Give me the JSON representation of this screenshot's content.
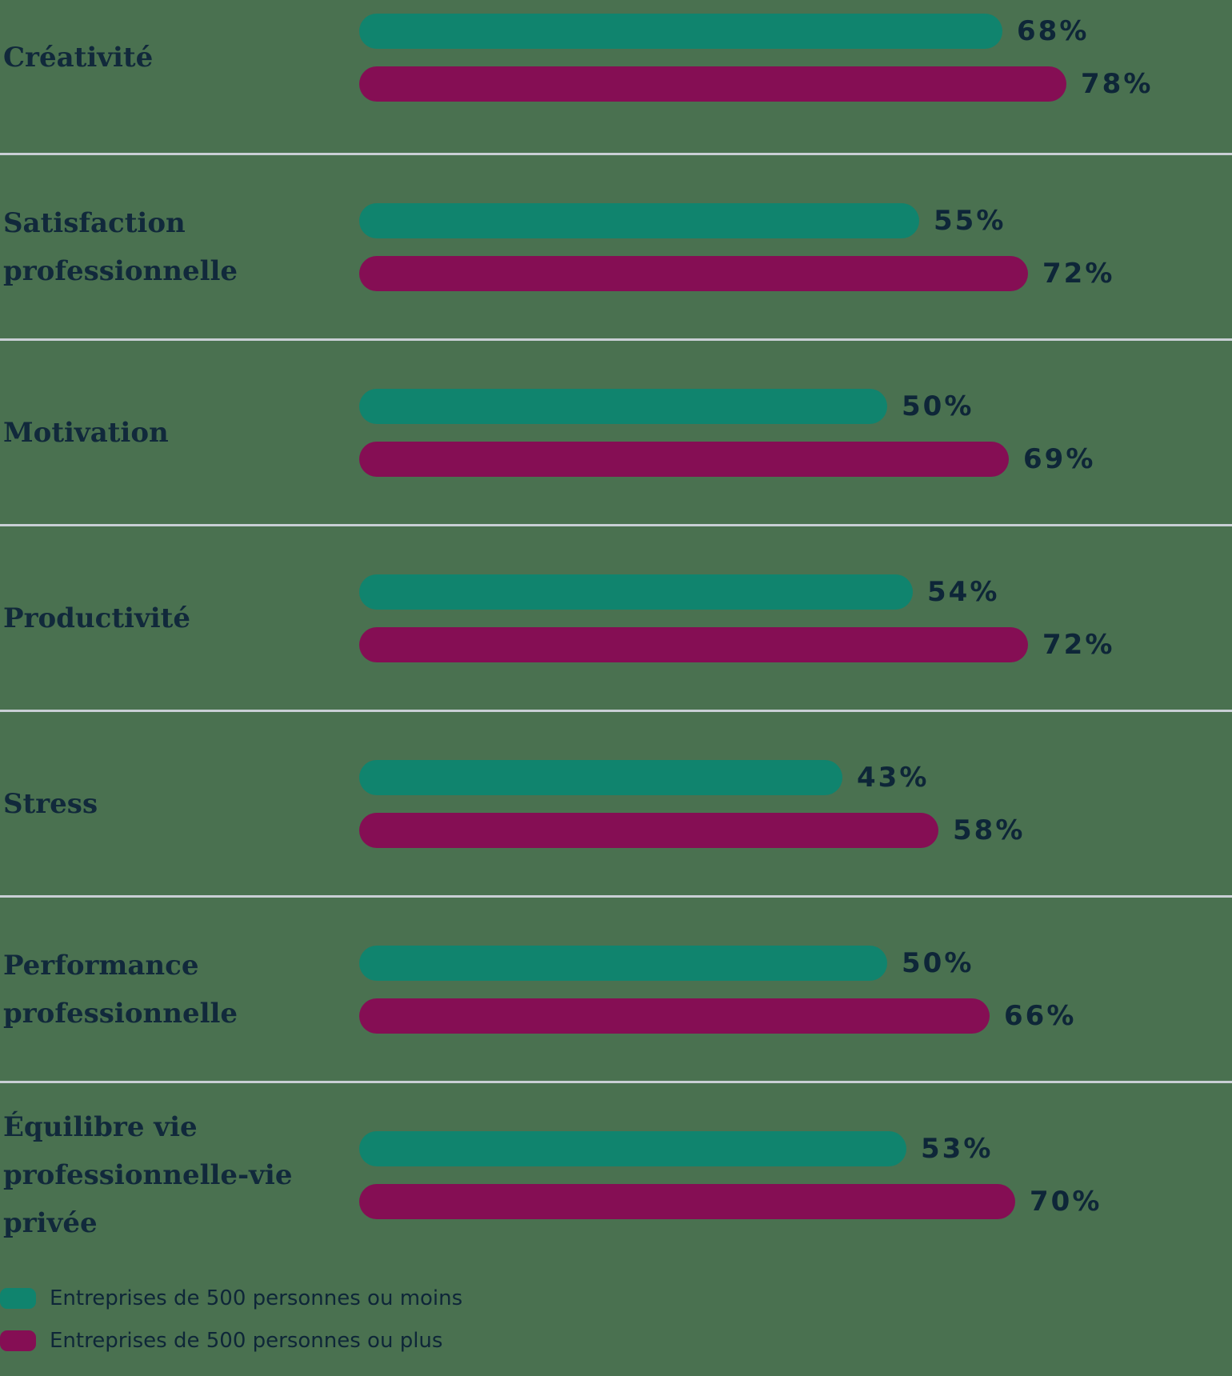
{
  "chart_data": {
    "type": "bar",
    "orientation": "horizontal",
    "title": "",
    "categories": [
      "Créativité",
      "Satisfaction professionnelle",
      "Motivation",
      "Productivité",
      "Stress",
      "Performance professionnelle",
      "Équilibre vie professionnelle-vie privée"
    ],
    "series": [
      {
        "name": "Entreprises de 500 personnes ou moins",
        "color": "#10846E",
        "values": [
          68,
          55,
          50,
          54,
          43,
          50,
          53
        ]
      },
      {
        "name": "Entreprises de 500 personnes ou plus",
        "color": "#850E54",
        "values": [
          78,
          72,
          69,
          72,
          58,
          66,
          70
        ]
      }
    ],
    "value_suffix": "%",
    "grid": false,
    "legend_position": "bottom-left",
    "background_color": "#4A7150",
    "text_color": "#0E2638",
    "label_color": "#11293B",
    "divider_color": "#C9CFD5"
  }
}
